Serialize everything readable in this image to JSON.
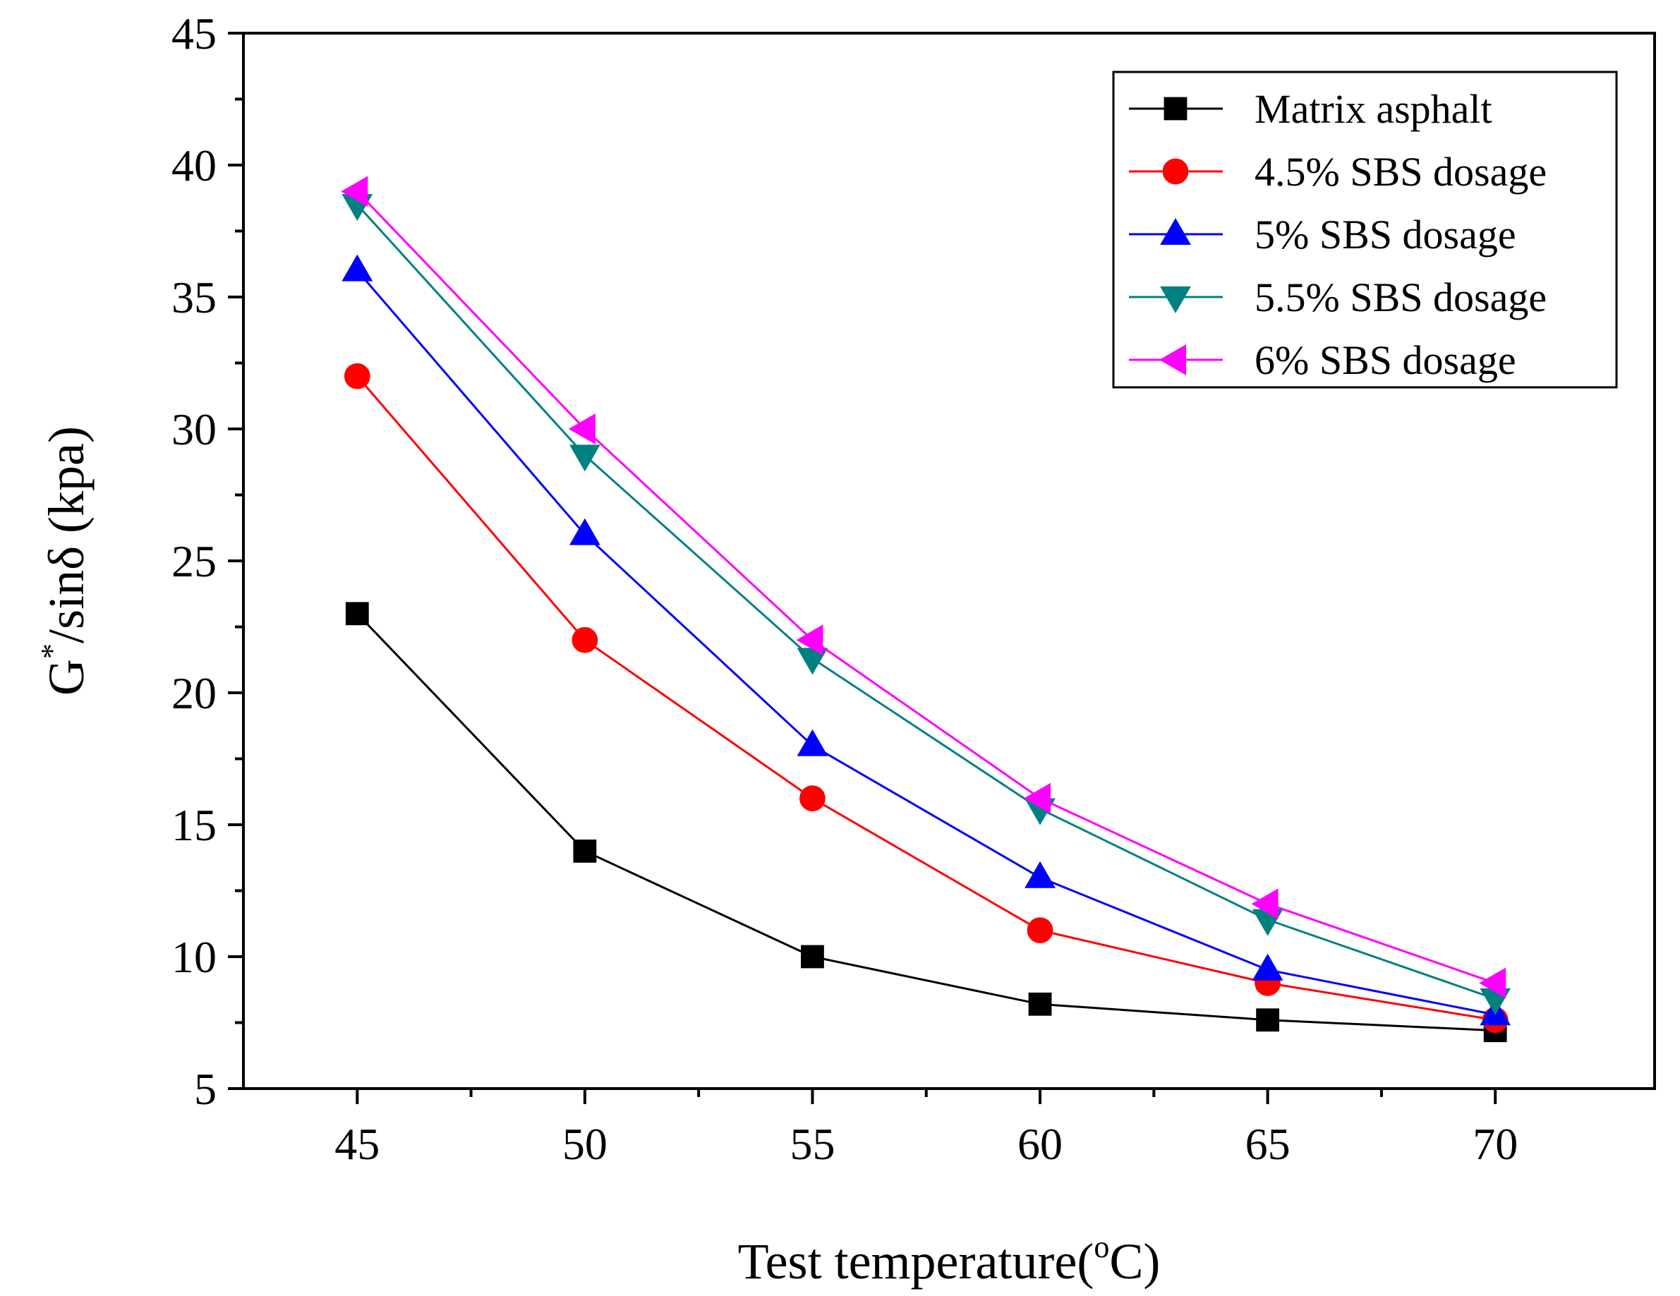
{
  "chart_data": {
    "type": "line",
    "title": "",
    "xlabel": "Test temperature(°C)",
    "xlabel_parts": {
      "main": "Test temperature(",
      "sup": "o",
      "tail": "C)"
    },
    "ylabel": "G*/sinδ (kpa)",
    "ylabel_parts": {
      "base": "G",
      "sup": "*",
      "tail": "/sinδ  (kpa)"
    },
    "xlim": [
      42.5,
      73.5
    ],
    "ylim": [
      5,
      45
    ],
    "x": [
      45,
      50,
      55,
      60,
      65,
      70
    ],
    "x_ticks": [
      45,
      50,
      55,
      60,
      65,
      70
    ],
    "x_tick_labels": [
      "45",
      "50",
      "55",
      "60",
      "65",
      "70"
    ],
    "y_ticks": [
      5,
      10,
      15,
      20,
      25,
      30,
      35,
      40,
      45
    ],
    "y_tick_labels": [
      "5",
      "10",
      "15",
      "20",
      "25",
      "30",
      "35",
      "40",
      "45"
    ],
    "grid": false,
    "legend_position": "top-right",
    "series": [
      {
        "name": "Matrix asphalt",
        "color": "#000000",
        "marker": "square",
        "values": [
          23,
          14,
          10,
          8.2,
          7.6,
          7.2
        ]
      },
      {
        "name": "4.5% SBS dosage",
        "color": "#ff0000",
        "marker": "circle",
        "values": [
          32,
          22,
          16,
          11,
          9,
          7.6
        ]
      },
      {
        "name": "5% SBS dosage",
        "color": "#0000ff",
        "marker": "triangle-up",
        "values": [
          36,
          26,
          18,
          13,
          9.5,
          7.8
        ]
      },
      {
        "name": "5.5% SBS dosage",
        "color": "#008080",
        "marker": "triangle-down",
        "values": [
          38.5,
          29,
          21.3,
          15.6,
          11.4,
          8.4
        ]
      },
      {
        "name": "6% SBS dosage",
        "color": "#ff00ff",
        "marker": "triangle-left",
        "values": [
          39,
          30,
          22,
          16,
          12,
          9
        ]
      }
    ]
  }
}
